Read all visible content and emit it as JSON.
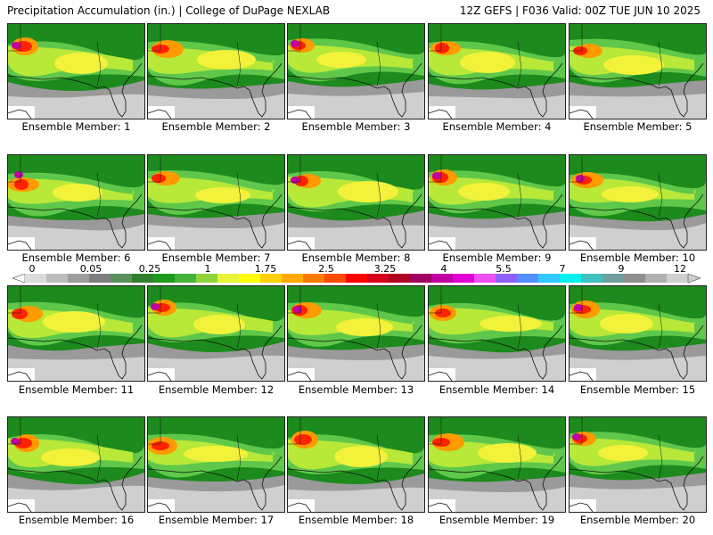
{
  "header": {
    "left": "Precipitation Accumulation (in.) | College of DuPage NEXLAB",
    "right": "12Z GEFS | F036 Valid: 00Z TUE JUN 10 2025"
  },
  "colorbar": {
    "tick_labels": [
      "0",
      "0.05",
      "0.25",
      "1",
      "1.75",
      "2.5",
      "3.25",
      "4",
      "5.5",
      "7",
      "9",
      "12"
    ],
    "colors": [
      "#dcdcdc",
      "#bdbdbd",
      "#9e9e9e",
      "#7f7f7f",
      "#5a8f5a",
      "#2f7f2f",
      "#1f9a1f",
      "#43b43a",
      "#8fd43a",
      "#e8f43a",
      "#ffff00",
      "#ffd000",
      "#ffaa00",
      "#ff7a00",
      "#ff4a00",
      "#ff0000",
      "#d8001a",
      "#b00020",
      "#a00060",
      "#c000a0",
      "#e000d8",
      "#f050f0",
      "#9060ff",
      "#5090ff",
      "#30c8ff",
      "#00f0f0",
      "#40c0c0",
      "#70a0a0",
      "#909090",
      "#b0b0b0",
      "#d0d0d0"
    ]
  },
  "panels": [
    {
      "label": "Ensemble Member: 1"
    },
    {
      "label": "Ensemble Member: 2"
    },
    {
      "label": "Ensemble Member: 3"
    },
    {
      "label": "Ensemble Member: 4"
    },
    {
      "label": "Ensemble Member: 5"
    },
    {
      "label": "Ensemble Member: 6"
    },
    {
      "label": "Ensemble Member: 7"
    },
    {
      "label": "Ensemble Member: 8"
    },
    {
      "label": "Ensemble Member: 9"
    },
    {
      "label": "Ensemble Member: 10"
    },
    {
      "label": "Ensemble Member: 11"
    },
    {
      "label": "Ensemble Member: 12"
    },
    {
      "label": "Ensemble Member: 13"
    },
    {
      "label": "Ensemble Member: 14"
    },
    {
      "label": "Ensemble Member: 15"
    },
    {
      "label": "Ensemble Member: 16"
    },
    {
      "label": "Ensemble Member: 17"
    },
    {
      "label": "Ensemble Member: 18"
    },
    {
      "label": "Ensemble Member: 19"
    },
    {
      "label": "Ensemble Member: 20"
    }
  ]
}
